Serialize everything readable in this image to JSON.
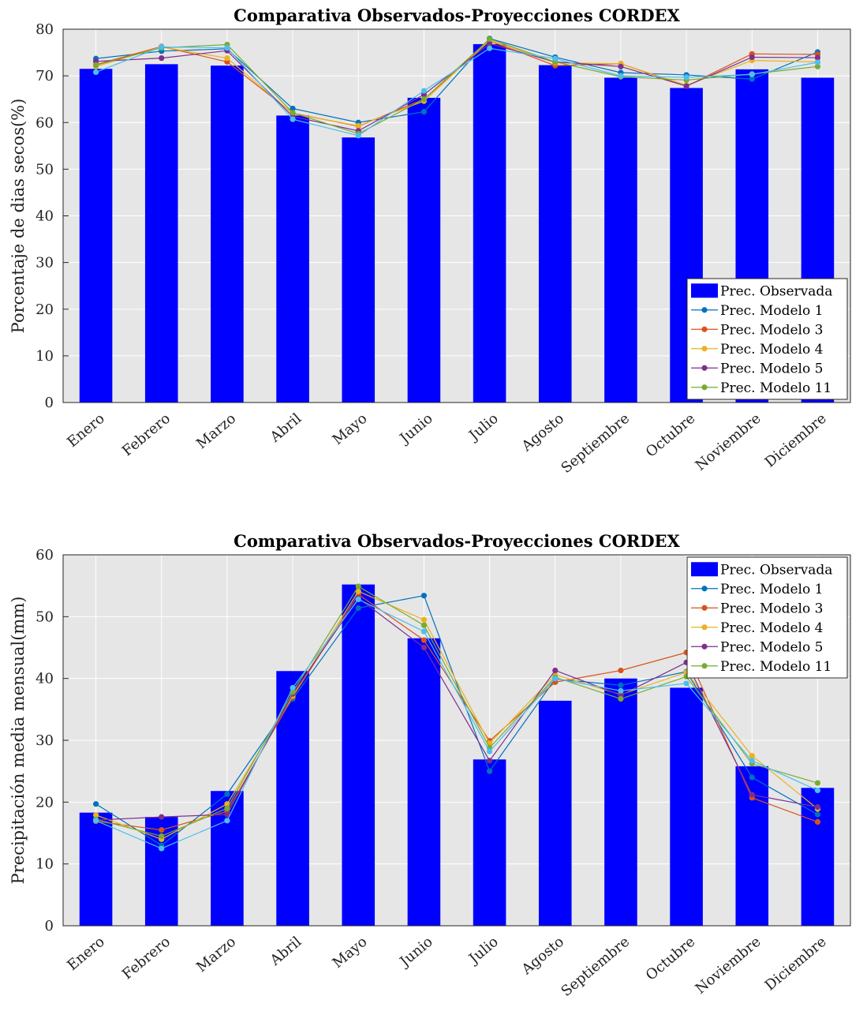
{
  "chart_data": [
    {
      "type": "bar",
      "title": "Comparativa Observados-Proyecciones CORDEX",
      "xlabel": "",
      "ylabel": "Porcentaje de dias secos(%)",
      "ylim": [
        0,
        80
      ],
      "yticks": [
        0,
        10,
        20,
        30,
        40,
        50,
        60,
        70,
        80
      ],
      "grid": true,
      "legend_position": "bottom-right",
      "categories": [
        "Enero",
        "Febrero",
        "Marzo",
        "Abril",
        "Mayo",
        "Junio",
        "Julio",
        "Agosto",
        "Septiembre",
        "Octubre",
        "Noviembre",
        "Diciembre"
      ],
      "series": [
        {
          "name": "Prec. Observada",
          "kind": "bar",
          "color": "#0000ff",
          "values": [
            71.5,
            72.5,
            72.2,
            61.5,
            56.8,
            65.3,
            76.8,
            72.3,
            69.6,
            67.4,
            71.4,
            69.6
          ]
        },
        {
          "name": "Prec. Modelo 1",
          "kind": "line",
          "color": "#0072bd",
          "values": [
            73.7,
            75.3,
            75.8,
            63.0,
            60.0,
            62.3,
            78.0,
            74.0,
            70.7,
            70.2,
            69.3,
            75.1
          ]
        },
        {
          "name": "Prec. Modelo 3",
          "kind": "line",
          "color": "#d95319",
          "values": [
            72.4,
            76.3,
            73.0,
            62.0,
            59.2,
            65.0,
            77.5,
            72.2,
            72.6,
            67.8,
            74.7,
            74.6
          ]
        },
        {
          "name": "Prec. Modelo 4",
          "kind": "line",
          "color": "#edb120",
          "values": [
            72.0,
            76.2,
            73.8,
            61.9,
            59.3,
            64.6,
            77.6,
            72.8,
            72.6,
            68.0,
            73.3,
            73.0
          ]
        },
        {
          "name": "Prec. Modelo 5",
          "kind": "line",
          "color": "#7e2f8e",
          "values": [
            73.1,
            73.8,
            75.4,
            61.3,
            58.2,
            66.0,
            76.9,
            73.0,
            72.0,
            67.8,
            74.0,
            73.9
          ]
        },
        {
          "name": "Prec. Modelo 11",
          "kind": "line",
          "color": "#77ac30",
          "values": [
            72.3,
            76.0,
            76.7,
            62.1,
            57.6,
            65.0,
            77.9,
            73.0,
            69.8,
            69.1,
            70.4,
            72.0
          ]
        },
        {
          "name": "",
          "kind": "line",
          "color": "#4dbeee",
          "values": [
            70.8,
            76.2,
            76.0,
            60.7,
            57.2,
            66.8,
            75.9,
            73.7,
            70.0,
            69.7,
            70.3,
            72.9
          ]
        }
      ]
    },
    {
      "type": "bar",
      "title": "Comparativa Observados-Proyecciones CORDEX",
      "xlabel": "",
      "ylabel": "Precipitación media mensual(mm)",
      "ylim": [
        0,
        60
      ],
      "yticks": [
        0,
        10,
        20,
        30,
        40,
        50,
        60
      ],
      "grid": true,
      "legend_position": "top-right",
      "categories": [
        "Enero",
        "Febrero",
        "Marzo",
        "Abril",
        "Mayo",
        "Junio",
        "Julio",
        "Agosto",
        "Septiembre",
        "Octubre",
        "Noviembre",
        "Diciembre"
      ],
      "series": [
        {
          "name": "Prec. Observada",
          "kind": "bar",
          "color": "#0000ff",
          "values": [
            18.3,
            17.6,
            21.8,
            41.2,
            55.2,
            46.5,
            26.9,
            36.4,
            40.0,
            38.5,
            25.8,
            22.3
          ]
        },
        {
          "name": "Prec. Modelo 1",
          "kind": "line",
          "color": "#0072bd",
          "values": [
            19.7,
            13.0,
            21.3,
            36.7,
            51.4,
            53.4,
            25.0,
            39.9,
            38.9,
            41.1,
            24.0,
            18.0
          ]
        },
        {
          "name": "Prec. Modelo 3",
          "kind": "line",
          "color": "#d95319",
          "values": [
            16.9,
            15.5,
            18.5,
            37.0,
            53.6,
            46.2,
            29.9,
            39.4,
            41.3,
            44.2,
            20.7,
            16.8
          ]
        },
        {
          "name": "Prec. Modelo 4",
          "kind": "line",
          "color": "#edb120",
          "values": [
            17.9,
            14.0,
            19.7,
            37.2,
            54.1,
            49.5,
            29.5,
            40.6,
            37.4,
            41.0,
            27.5,
            18.9
          ]
        },
        {
          "name": "Prec. Modelo 5",
          "kind": "line",
          "color": "#7e2f8e",
          "values": [
            17.1,
            17.6,
            18.0,
            37.5,
            53.0,
            45.0,
            26.7,
            41.3,
            37.3,
            42.6,
            21.2,
            19.2
          ]
        },
        {
          "name": "Prec. Modelo 11",
          "kind": "line",
          "color": "#77ac30",
          "values": [
            17.2,
            14.5,
            19.0,
            37.8,
            54.9,
            48.6,
            28.8,
            40.2,
            36.7,
            40.3,
            26.2,
            23.1
          ]
        },
        {
          "name": "",
          "kind": "line",
          "color": "#4dbeee",
          "values": [
            17.0,
            12.5,
            17.0,
            38.5,
            52.8,
            47.6,
            28.2,
            40.0,
            38.0,
            39.2,
            26.7,
            21.9
          ]
        }
      ]
    }
  ]
}
